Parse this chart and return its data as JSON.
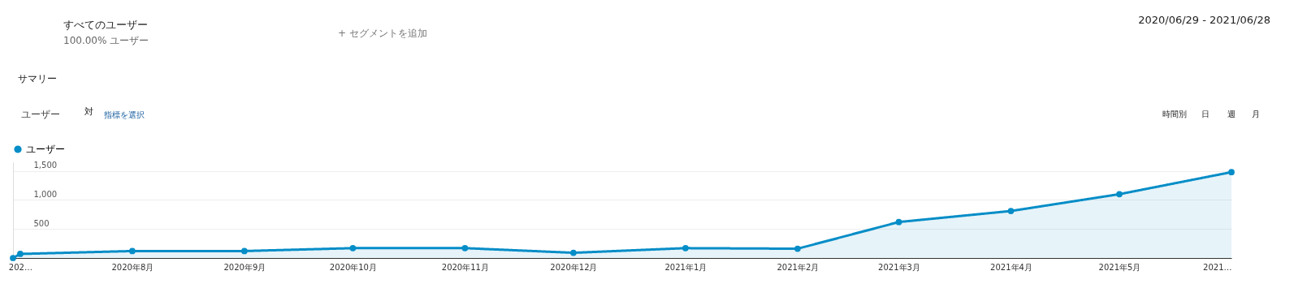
{
  "chart_data": {
    "type": "area",
    "annotations": [
      "すべてのユーザー",
      "100.00% ユーザー",
      "+ セグメントを追加",
      "2020/06/29 - 2021/06/28",
      "サマリー",
      "ユーザー",
      "対",
      "指標を選択",
      "時間別",
      "日",
      "週",
      "月"
    ],
    "x": [
      "2020-06-29",
      "2020-07-01",
      "2020-08-01",
      "2020-09-01",
      "2020-10-01",
      "2020-11-01",
      "2020-12-01",
      "2021-01-01",
      "2021-02-01",
      "2021-03-01",
      "2021-04-01",
      "2021-05-01",
      "2021-06-01"
    ],
    "series": [
      {
        "name": "ユーザー",
        "color": "#058dc7",
        "values": [
          0,
          70,
          120,
          120,
          170,
          170,
          90,
          170,
          160,
          620,
          810,
          1100,
          1480
        ]
      }
    ],
    "xlim": [
      "2020-06-29",
      "2021-06-01"
    ],
    "xticks": [
      {
        "value": "2020-07-01",
        "label": "202…"
      },
      {
        "value": "2020-08-01",
        "label": "2020年8月"
      },
      {
        "value": "2020-09-01",
        "label": "2020年9月"
      },
      {
        "value": "2020-10-01",
        "label": "2020年10月"
      },
      {
        "value": "2020-11-01",
        "label": "2020年11月"
      },
      {
        "value": "2020-12-01",
        "label": "2020年12月"
      },
      {
        "value": "2021-01-01",
        "label": "2021年1月"
      },
      {
        "value": "2021-02-01",
        "label": "2021年2月"
      },
      {
        "value": "2021-03-01",
        "label": "2021年3月"
      },
      {
        "value": "2021-04-01",
        "label": "2021年4月"
      },
      {
        "value": "2021-05-01",
        "label": "2021年5月"
      },
      {
        "value": "2021-06-01",
        "label": "2021…"
      }
    ],
    "ylim": [
      0,
      1650
    ],
    "yticks": [
      500,
      {
        "value": 1000,
        "label": "1,000"
      },
      {
        "value": 1500,
        "label": "1,500"
      }
    ],
    "grid": "y",
    "legend": "top left",
    "marker": "circle",
    "line_style": "solid"
  }
}
